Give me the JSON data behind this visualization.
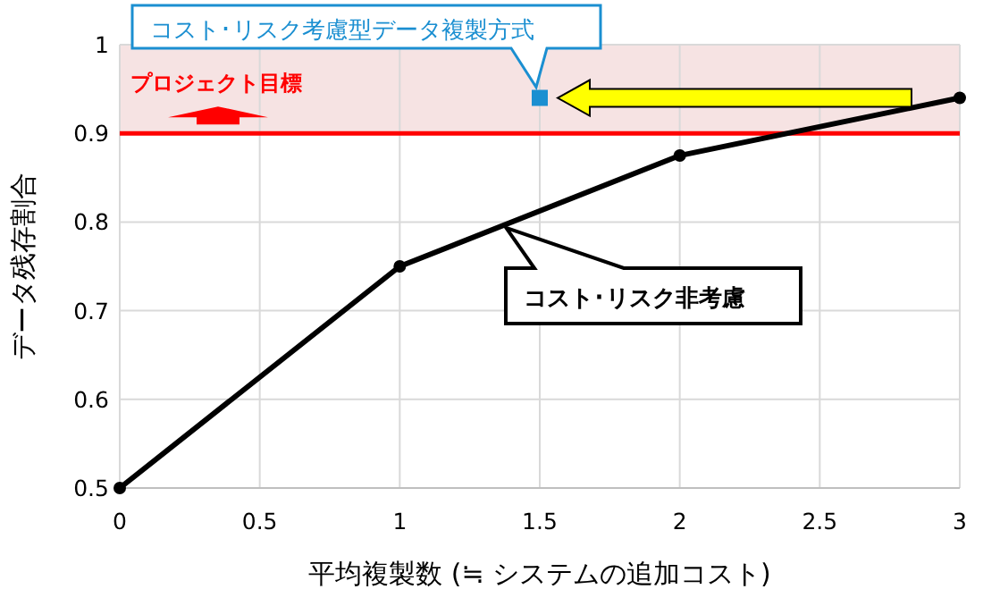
{
  "chart_data": {
    "type": "line",
    "xlabel": "平均複製数 (≒ システムの追加コスト)",
    "ylabel": "データ残存割合",
    "xlim": [
      0,
      3
    ],
    "xticks": [
      0,
      0.5,
      1,
      1.5,
      2,
      2.5,
      3
    ],
    "ylim": [
      0.5,
      1
    ],
    "yticks": [
      0.5,
      0.6,
      0.7,
      0.8,
      0.9,
      1
    ],
    "grid": true,
    "legend": false,
    "series": [
      {
        "name": "コスト･リスク非考慮",
        "color": "#000000",
        "marker": "circle",
        "line_style": "solid",
        "x": [
          0,
          1,
          2,
          3
        ],
        "values": [
          0.5,
          0.75,
          0.875,
          0.94
        ]
      },
      {
        "name": "コスト･リスク考慮型データ複製方式",
        "type": "scatter",
        "color": "#1b8fd1",
        "marker": "square",
        "x": [
          1.5
        ],
        "values": [
          0.94
        ]
      }
    ],
    "ref_lines": [
      {
        "axis": "y",
        "value": 0.9,
        "label": "プロジェクト目標",
        "color": "#ff0000",
        "line_style": "solid"
      }
    ],
    "bands": [
      {
        "axis": "y",
        "from": 0.9,
        "to": 1,
        "color": "#f6e3e3"
      }
    ]
  }
}
